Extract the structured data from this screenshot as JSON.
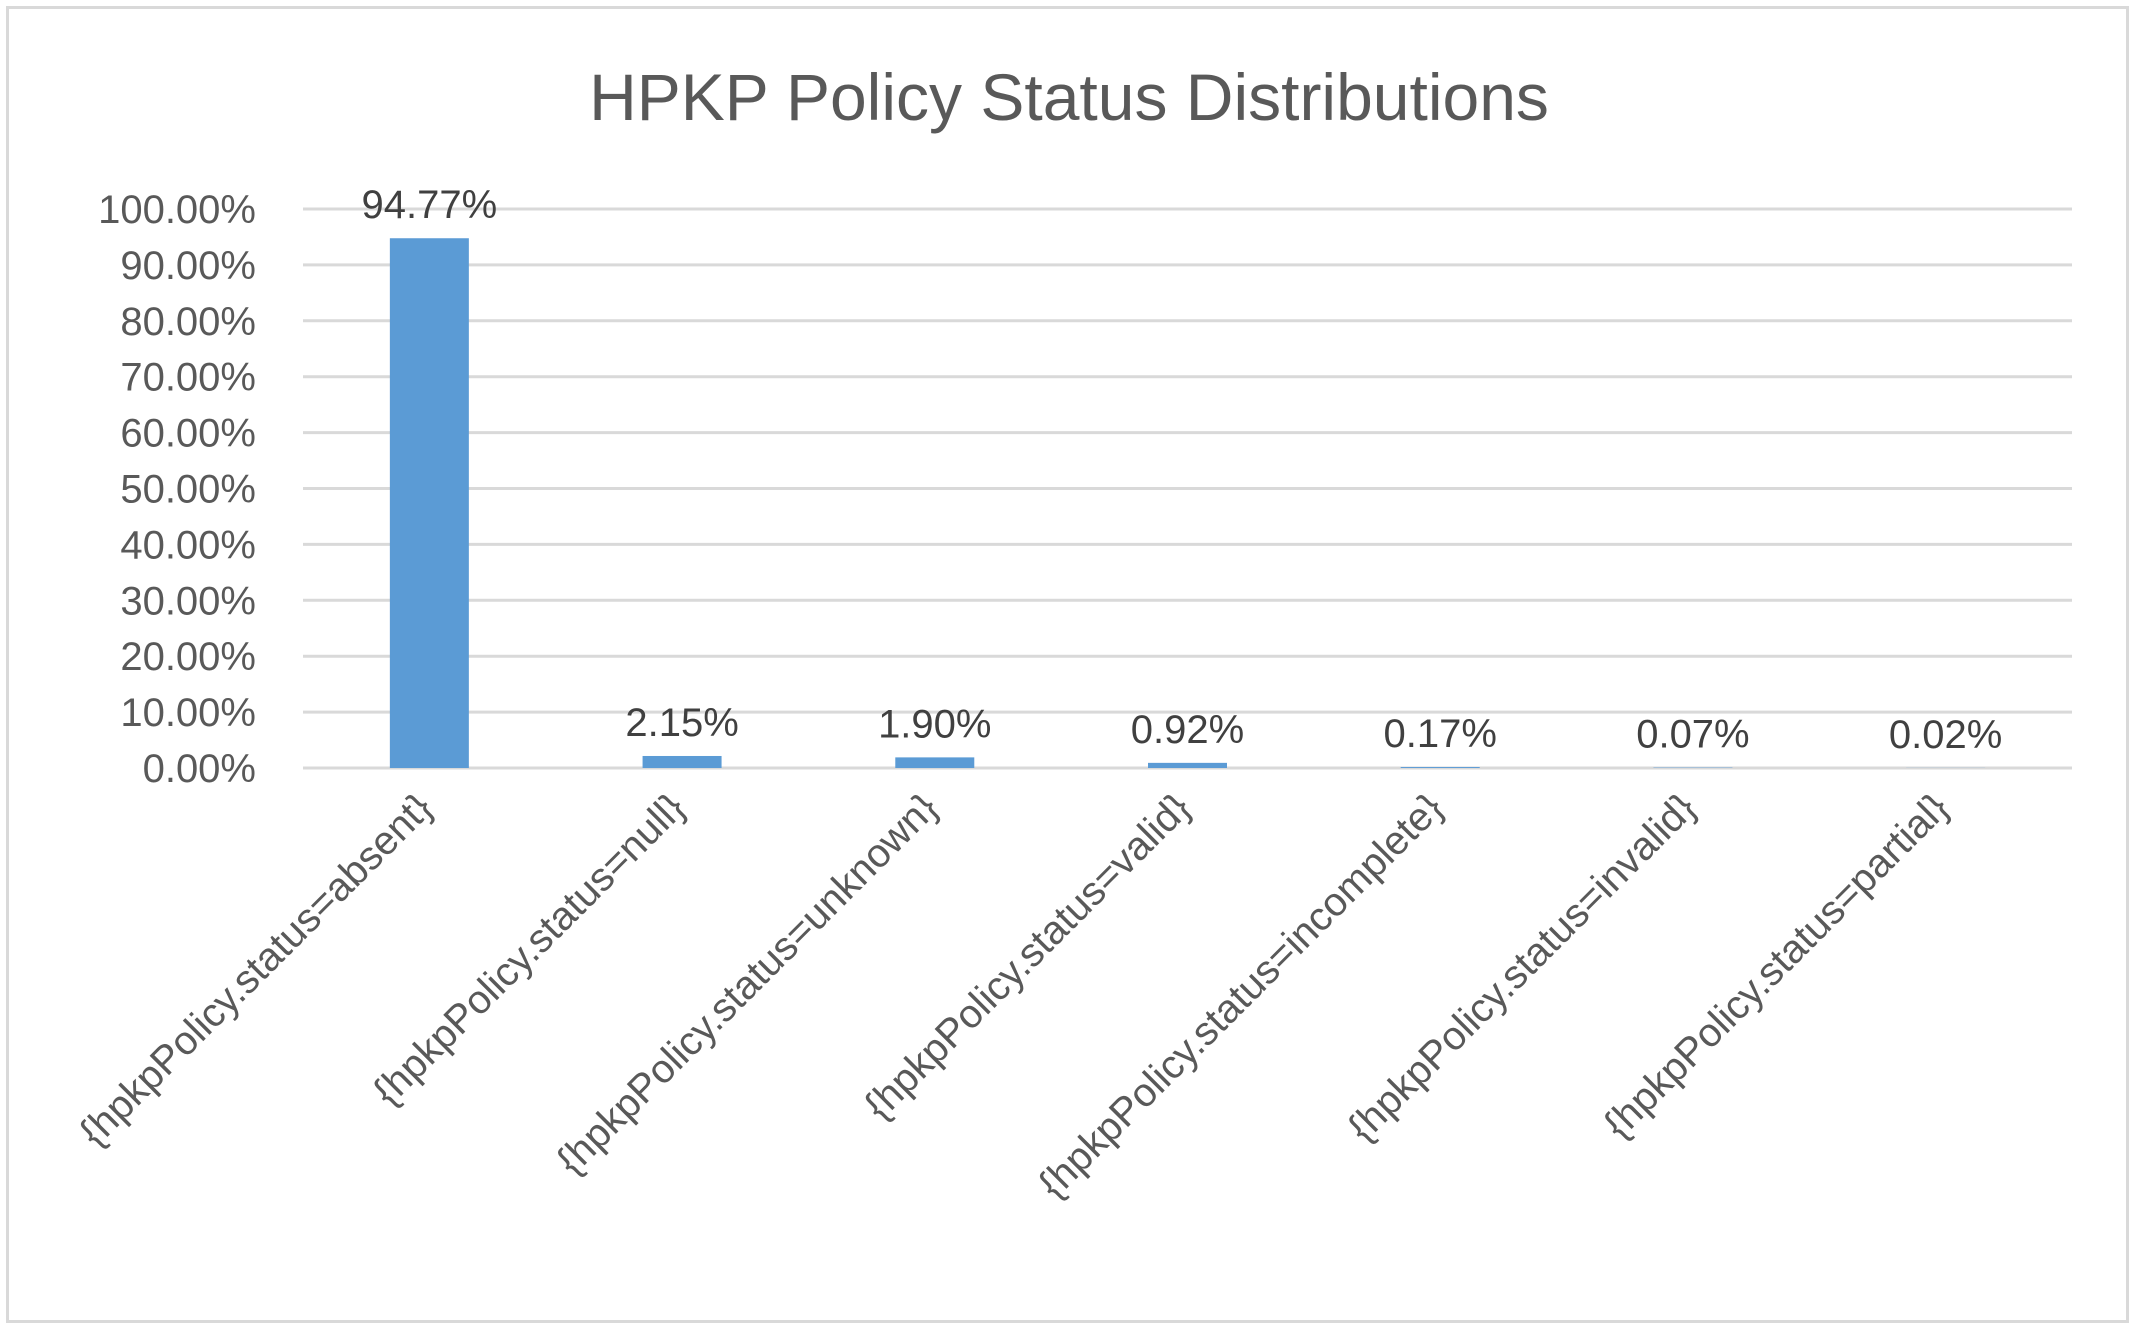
{
  "chart_data": {
    "type": "bar",
    "title": "HPKP Policy Status Distributions",
    "xlabel": "",
    "ylabel": "",
    "ylim": [
      0,
      100
    ],
    "y_ticks": [
      "0.00%",
      "10.00%",
      "20.00%",
      "30.00%",
      "40.00%",
      "50.00%",
      "60.00%",
      "70.00%",
      "80.00%",
      "90.00%",
      "100.00%"
    ],
    "y_tick_values": [
      0,
      10,
      20,
      30,
      40,
      50,
      60,
      70,
      80,
      90,
      100
    ],
    "categories": [
      "{hpkpPolicy.status=absent}",
      "{hpkpPolicy.status=null}",
      "{hpkpPolicy.status=unknown}",
      "{hpkpPolicy.status=valid}",
      "{hpkpPolicy.status=incomplete}",
      "{hpkpPolicy.status=invalid}",
      "{hpkpPolicy.status=partial}"
    ],
    "values": [
      94.77,
      2.15,
      1.9,
      0.92,
      0.17,
      0.07,
      0.02
    ],
    "data_labels": [
      "94.77%",
      "2.15%",
      "1.90%",
      "0.92%",
      "0.17%",
      "0.07%",
      "0.02%"
    ],
    "grid": true,
    "legend": "none",
    "bar_color": "#5b9bd5",
    "grid_color": "#d9d9d9",
    "text_color": "#595959"
  }
}
